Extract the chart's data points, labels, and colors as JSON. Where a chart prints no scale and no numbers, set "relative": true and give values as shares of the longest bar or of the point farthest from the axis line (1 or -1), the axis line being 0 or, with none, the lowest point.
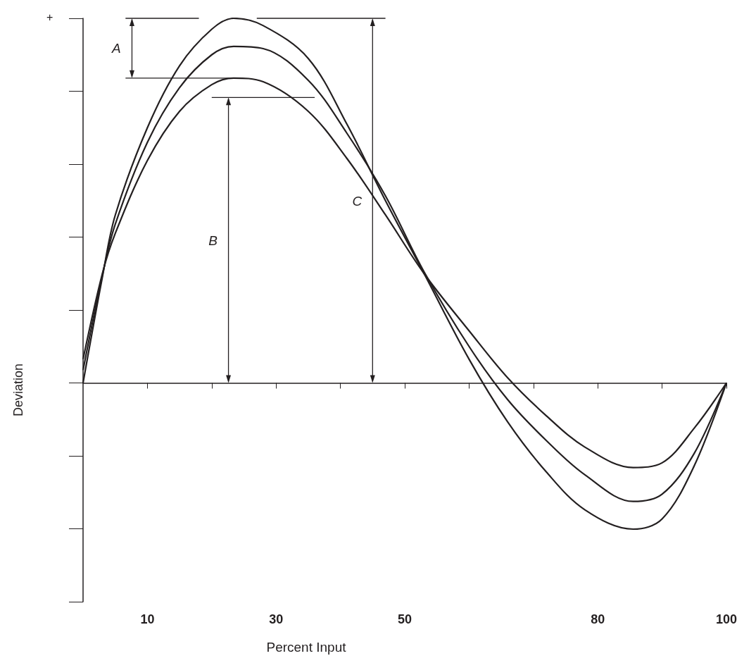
{
  "chart_data": {
    "type": "line",
    "relative": true,
    "xlabel": "Percent Input",
    "ylabel": "Deviation",
    "x": [
      0,
      3,
      5,
      10,
      15,
      20,
      23.4,
      28,
      35,
      41,
      47,
      53,
      60,
      66,
      72,
      78,
      85.5,
      90,
      95,
      100
    ],
    "series": [
      {
        "color": "#231f20",
        "values": [
          0,
          0.29,
          0.46,
          0.7,
          0.87,
          0.97,
          1.0,
          0.98,
          0.89,
          0.71,
          0.5,
          0.3,
          0.065,
          -0.107,
          -0.244,
          -0.348,
          -0.401,
          -0.373,
          -0.227,
          0
        ]
      },
      {
        "color": "#231f20",
        "values": [
          0.035,
          0.295,
          0.435,
          0.66,
          0.81,
          0.9,
          0.923,
          0.917,
          0.83,
          0.685,
          0.513,
          0.305,
          0.1,
          -0.046,
          -0.158,
          -0.252,
          -0.325,
          -0.305,
          -0.193,
          0
        ]
      },
      {
        "color": "#231f20",
        "values": [
          0.065,
          0.3,
          0.41,
          0.61,
          0.745,
          0.818,
          0.836,
          0.826,
          0.745,
          0.616,
          0.461,
          0.3,
          0.143,
          0.014,
          -0.09,
          -0.176,
          -0.232,
          -0.219,
          -0.124,
          0
        ]
      }
    ],
    "xlim": [
      0,
      100
    ],
    "xticks": [
      10,
      {
        "value": 20,
        "label": null
      },
      30,
      {
        "value": 40,
        "label": null
      },
      50,
      {
        "value": 60,
        "label": null
      },
      {
        "value": 70,
        "label": null
      },
      80,
      {
        "value": 90,
        "label": null
      },
      100
    ],
    "annotations": [
      "+",
      "A",
      "B",
      "C"
    ],
    "grid": false
  }
}
